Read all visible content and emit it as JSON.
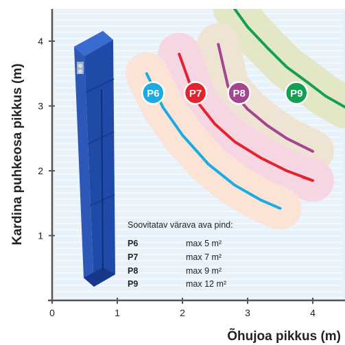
{
  "chart_data": {
    "type": "line",
    "xlabel": "Õhujoa pikkus (m)",
    "ylabel": "Kardina puhkeosa pikkus (m)",
    "xlim": [
      0,
      4.5
    ],
    "ylim": [
      0,
      4.5
    ],
    "xticks": [
      "0",
      "1",
      "2",
      "3",
      "4"
    ],
    "yticks": [
      "1",
      "2",
      "3",
      "4"
    ],
    "grid": false,
    "series": [
      {
        "name": "P6",
        "color": "#1aabe2",
        "band_color": "#fbe3d6",
        "x": [
          1.45,
          1.7,
          2.0,
          2.4,
          2.8,
          3.2,
          3.5
        ],
        "y": [
          3.5,
          2.98,
          2.55,
          2.1,
          1.78,
          1.55,
          1.42
        ]
      },
      {
        "name": "P7",
        "color": "#e3232e",
        "band_color": "#f6d6e2",
        "x": [
          1.95,
          2.2,
          2.5,
          2.8,
          3.2,
          3.6,
          4.0,
          3.85
        ],
        "y": [
          3.8,
          3.1,
          2.72,
          2.45,
          2.2,
          2.0,
          1.85,
          1.9
        ]
      },
      {
        "name": "P8",
        "color": "#a4468f",
        "band_color": "#efe3d4",
        "x": [
          2.55,
          2.7,
          3.0,
          3.3,
          3.6,
          3.9,
          4.0
        ],
        "y": [
          3.95,
          3.3,
          2.95,
          2.7,
          2.5,
          2.35,
          2.3
        ]
      },
      {
        "name": "P9",
        "color": "#13a053",
        "band_color": "#e3e7c6",
        "x": [
          2.8,
          3.0,
          3.3,
          3.6,
          3.9,
          4.2,
          4.5
        ],
        "y": [
          4.5,
          4.22,
          3.9,
          3.6,
          3.38,
          3.15,
          2.98
        ]
      }
    ],
    "labels": [
      {
        "text": "P6",
        "x": 1.55,
        "y": 3.2
      },
      {
        "text": "P7",
        "x": 2.2,
        "y": 3.2
      },
      {
        "text": "P8",
        "x": 2.87,
        "y": 3.2
      },
      {
        "text": "P9",
        "x": 3.75,
        "y": 3.2
      }
    ],
    "legend": {
      "title": "Soovitatav värava ava pind:",
      "items": [
        {
          "key": "P6",
          "value": "max 5 m²"
        },
        {
          "key": "P7",
          "value": "max 7 m²"
        },
        {
          "key": "P8",
          "value": "max 9 m²"
        },
        {
          "key": "P9",
          "value": "max 12 m²"
        }
      ]
    }
  }
}
